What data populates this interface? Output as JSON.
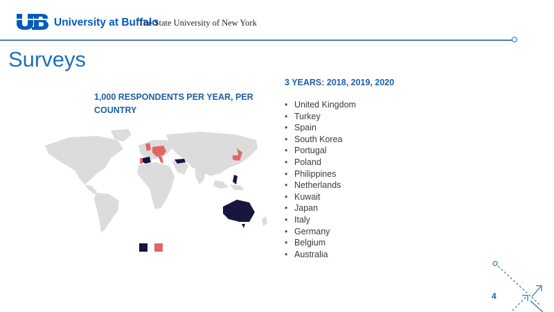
{
  "header": {
    "logo_letters": "UB",
    "university_name": "University at Buffalo",
    "university_subtitle": "The State University of New York"
  },
  "page": {
    "title": "Surveys",
    "number": "4"
  },
  "map": {
    "heading": "1,000 RESPONDENTS PER YEAR, PER COUNTRY",
    "base_color": "#dcdcdc",
    "legend": {
      "colors": [
        "#16163f",
        "#e06666"
      ]
    }
  },
  "survey_info": {
    "years_heading": "3 YEARS: 2018, 2019, 2020",
    "countries": [
      "United Kingdom",
      "Turkey",
      "Spain",
      "South Korea",
      "Portugal",
      "Poland",
      "Philippines",
      "Netherlands",
      "Kuwait",
      "Japan",
      "Italy",
      "Germany",
      "Belgium",
      "Australia"
    ]
  },
  "colors": {
    "brand_blue": "#005bbb",
    "heading_blue": "#1b5ea8",
    "navy": "#16163f",
    "coral": "#e06666"
  }
}
